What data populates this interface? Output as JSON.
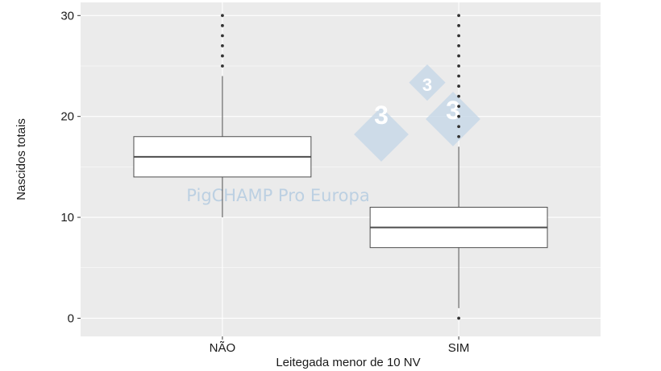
{
  "chart_data": {
    "type": "box",
    "xlabel": "Leitegada menor de 10 NV",
    "ylabel": "Nascidos totais",
    "ylim": [
      -1.8,
      31.3
    ],
    "yticks": [
      0,
      10,
      20,
      30
    ],
    "categories": [
      "NÃO",
      "SIM"
    ],
    "boxes": [
      {
        "category": "NÃO",
        "q1": 14,
        "median": 16,
        "q3": 18,
        "whisker_low": 10,
        "whisker_high": 24,
        "outliers": [
          25,
          26,
          27,
          28,
          29,
          30
        ]
      },
      {
        "category": "SIM",
        "q1": 7,
        "median": 9,
        "q3": 11,
        "whisker_low": 1,
        "whisker_high": 17,
        "outliers": [
          0,
          18,
          19,
          20,
          21,
          22,
          23,
          24,
          25,
          26,
          27,
          28,
          29,
          30
        ]
      }
    ],
    "grid": true,
    "legend": "none",
    "colors": {
      "panel": "#ebebeb",
      "grid": "#ffffff",
      "box_fill": "#ffffff",
      "box_line": "#4d4d4d",
      "outlier": "#333333"
    }
  },
  "watermark": {
    "text": "PigCHAMP Pro Europa",
    "logo_digits": [
      "3",
      "3",
      "3"
    ],
    "colors": {
      "logo": "#c8d8e8",
      "text": "#bcd0e2"
    }
  }
}
